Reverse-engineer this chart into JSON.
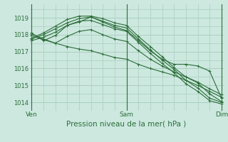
{
  "bg_color": "#cce8df",
  "grid_color": "#aacfbf",
  "line_color": "#2d6e3a",
  "title": "Pression niveau de la mer( hPa )",
  "xtick_labels": [
    "Ven",
    "Sam",
    "Dim"
  ],
  "xtick_positions": [
    0,
    24,
    48
  ],
  "ytick_labels": [
    "1014",
    "1015",
    "1016",
    "1017",
    "1018",
    "1019"
  ],
  "ytick_values": [
    1014,
    1015,
    1016,
    1017,
    1018,
    1019
  ],
  "ylim": [
    1013.5,
    1019.8
  ],
  "xlim": [
    -0.5,
    48.5
  ],
  "lines": [
    {
      "x": [
        0,
        3,
        6,
        9,
        12,
        15,
        18,
        21,
        24,
        27,
        30,
        33,
        36,
        39,
        42,
        45,
        48
      ],
      "y": [
        1017.8,
        1018.1,
        1018.5,
        1018.9,
        1019.1,
        1019.1,
        1018.95,
        1018.7,
        1018.55,
        1017.9,
        1017.3,
        1016.7,
        1016.05,
        1015.5,
        1015.15,
        1014.5,
        1014.05
      ]
    },
    {
      "x": [
        0,
        3,
        6,
        9,
        12,
        15,
        18,
        21,
        24,
        27,
        30,
        33,
        36,
        39,
        42,
        45,
        48
      ],
      "y": [
        1017.75,
        1018.0,
        1018.35,
        1018.7,
        1018.95,
        1019.05,
        1018.8,
        1018.55,
        1018.4,
        1017.75,
        1017.1,
        1016.5,
        1015.95,
        1015.3,
        1014.85,
        1014.25,
        1014.0
      ]
    },
    {
      "x": [
        0,
        3,
        6,
        9,
        12,
        15,
        18,
        21,
        24,
        27,
        30,
        33,
        36,
        39,
        42,
        45,
        48
      ],
      "y": [
        1017.65,
        1017.85,
        1018.15,
        1018.55,
        1018.8,
        1018.85,
        1018.6,
        1018.35,
        1018.2,
        1017.55,
        1016.9,
        1016.3,
        1015.75,
        1015.1,
        1014.65,
        1014.1,
        1013.9
      ]
    },
    {
      "x": [
        0,
        3,
        6,
        9,
        12,
        15,
        18,
        21,
        24,
        27,
        30,
        33,
        36,
        39,
        42,
        45,
        48
      ],
      "y": [
        1017.95,
        1017.7,
        1017.5,
        1017.9,
        1018.2,
        1018.3,
        1018.0,
        1017.75,
        1017.6,
        1017.05,
        1016.55,
        1016.15,
        1015.8,
        1015.5,
        1015.2,
        1014.8,
        1014.45
      ]
    },
    {
      "x": [
        0,
        3,
        6,
        9,
        12,
        15,
        18,
        21,
        24,
        27,
        30,
        33,
        36,
        39,
        42,
        45,
        48
      ],
      "y": [
        1018.05,
        1017.75,
        1017.5,
        1017.3,
        1017.15,
        1017.05,
        1016.85,
        1016.65,
        1016.55,
        1016.25,
        1016.0,
        1015.8,
        1015.6,
        1015.3,
        1015.0,
        1014.65,
        1014.3
      ]
    },
    {
      "x": [
        0,
        3,
        6,
        9,
        12,
        15,
        18,
        21,
        24,
        27,
        30,
        33,
        36,
        39,
        42,
        45,
        48
      ],
      "y": [
        1018.1,
        1017.65,
        1017.95,
        1018.55,
        1018.75,
        1019.05,
        1018.75,
        1018.45,
        1018.25,
        1017.65,
        1017.05,
        1016.55,
        1016.25,
        1016.25,
        1016.15,
        1015.85,
        1014.25
      ]
    }
  ]
}
